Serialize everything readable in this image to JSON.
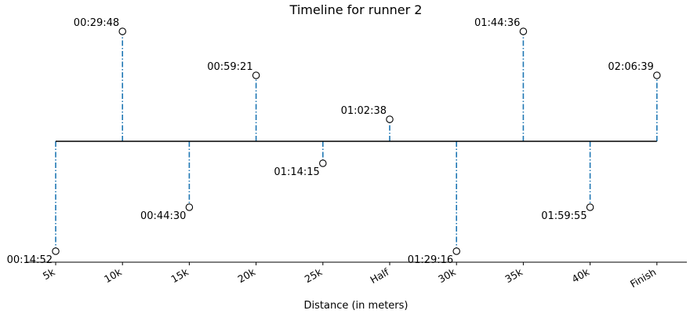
{
  "chart_data": {
    "type": "timeline",
    "title": "Timeline for runner 2",
    "xlabel": "Distance (in meters)",
    "categories": [
      "5k",
      "10k",
      "15k",
      "20k",
      "25k",
      "Half",
      "30k",
      "35k",
      "40k",
      "Finish"
    ],
    "labels": [
      "00:14:52",
      "00:29:48",
      "00:44:30",
      "00:59:21",
      "01:14:15",
      "01:02:38",
      "01:29:16",
      "01:44:36",
      "01:59:55",
      "02:06:39"
    ],
    "levels": [
      -5,
      5,
      -3,
      3,
      -1,
      1,
      -5,
      5,
      -3,
      3
    ],
    "ylim": [
      -5.5,
      5.5
    ],
    "colors": {
      "stem": "#1f77b4",
      "baseline": "#000000",
      "marker_edge": "#000000",
      "marker_face": "#ffffff"
    }
  }
}
